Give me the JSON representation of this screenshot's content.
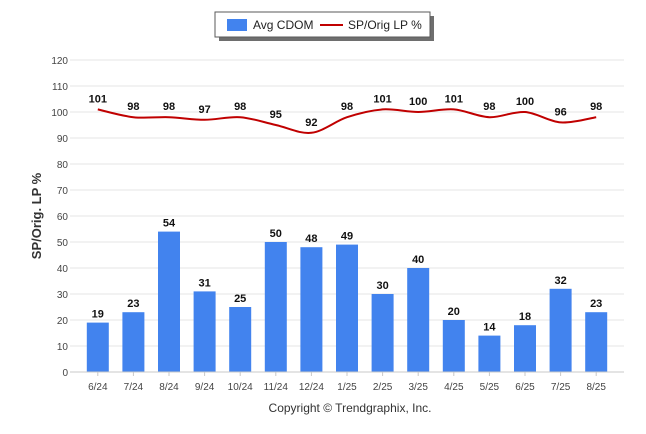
{
  "chart_data": {
    "type": "bar",
    "categories": [
      "6/24",
      "7/24",
      "8/24",
      "9/24",
      "10/24",
      "11/24",
      "12/24",
      "1/25",
      "2/25",
      "3/25",
      "4/25",
      "5/25",
      "6/25",
      "7/25",
      "8/25"
    ],
    "ylabel": "SP/Orig. LP %",
    "ylim": [
      0,
      120
    ],
    "yticks": [
      "0",
      "10",
      "20",
      "30",
      "40",
      "50",
      "60",
      "70",
      "80",
      "90",
      "100",
      "110",
      "120"
    ],
    "grid": true,
    "legend_position": "top-center",
    "series": [
      {
        "name": "Avg CDOM",
        "kind": "bar",
        "color": "#4283ee",
        "values": [
          19,
          23,
          54,
          31,
          25,
          50,
          48,
          49,
          30,
          40,
          20,
          14,
          18,
          32,
          23
        ]
      },
      {
        "name": "SP/Orig LP %",
        "kind": "line",
        "color": "#c00000",
        "values": [
          101,
          98,
          98,
          97,
          98,
          95,
          92,
          98,
          101,
          100,
          101,
          98,
          100,
          96,
          98
        ]
      }
    ]
  },
  "footer": {
    "copyright": "Copyright © Trendgraphix, Inc."
  }
}
